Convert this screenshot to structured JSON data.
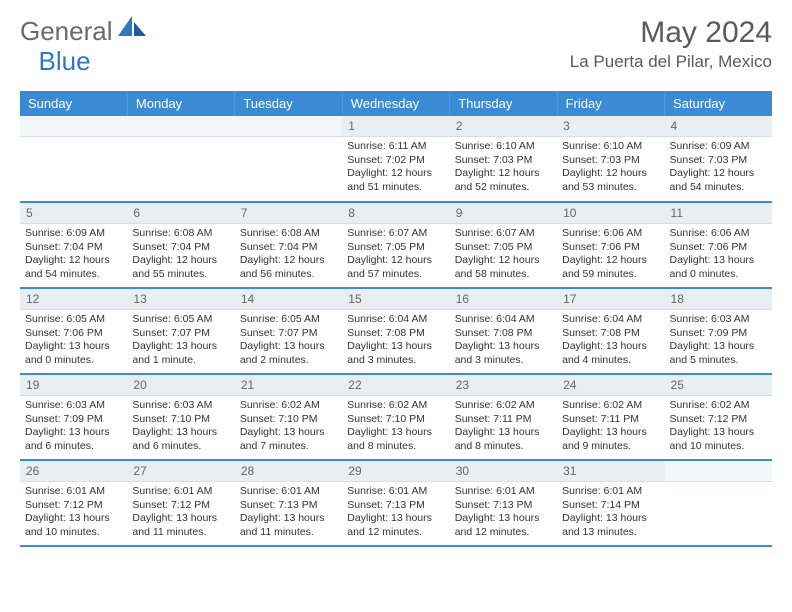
{
  "logo": {
    "general": "General",
    "blue": "Blue"
  },
  "title": "May 2024",
  "location": "La Puerta del Pilar, Mexico",
  "weekdays": [
    "Sunday",
    "Monday",
    "Tuesday",
    "Wednesday",
    "Thursday",
    "Friday",
    "Saturday"
  ],
  "colors": {
    "header_bg": "#3b8bd4",
    "header_text": "#ffffff",
    "daynum_bg": "#e9eef3",
    "row_border": "#3b8bd4",
    "logo_gray": "#6a6a6a",
    "logo_blue": "#2f78c2"
  },
  "font": {
    "title_size": 30,
    "location_size": 17,
    "weekday_size": 13,
    "daynum_size": 12,
    "body_size": 10.5
  },
  "grid": {
    "rows": 5,
    "cols": 7,
    "first_day_col": 3
  },
  "days": [
    {
      "n": "1",
      "sunrise": "Sunrise: 6:11 AM",
      "sunset": "Sunset: 7:02 PM",
      "daylight": "Daylight: 12 hours and 51 minutes."
    },
    {
      "n": "2",
      "sunrise": "Sunrise: 6:10 AM",
      "sunset": "Sunset: 7:03 PM",
      "daylight": "Daylight: 12 hours and 52 minutes."
    },
    {
      "n": "3",
      "sunrise": "Sunrise: 6:10 AM",
      "sunset": "Sunset: 7:03 PM",
      "daylight": "Daylight: 12 hours and 53 minutes."
    },
    {
      "n": "4",
      "sunrise": "Sunrise: 6:09 AM",
      "sunset": "Sunset: 7:03 PM",
      "daylight": "Daylight: 12 hours and 54 minutes."
    },
    {
      "n": "5",
      "sunrise": "Sunrise: 6:09 AM",
      "sunset": "Sunset: 7:04 PM",
      "daylight": "Daylight: 12 hours and 54 minutes."
    },
    {
      "n": "6",
      "sunrise": "Sunrise: 6:08 AM",
      "sunset": "Sunset: 7:04 PM",
      "daylight": "Daylight: 12 hours and 55 minutes."
    },
    {
      "n": "7",
      "sunrise": "Sunrise: 6:08 AM",
      "sunset": "Sunset: 7:04 PM",
      "daylight": "Daylight: 12 hours and 56 minutes."
    },
    {
      "n": "8",
      "sunrise": "Sunrise: 6:07 AM",
      "sunset": "Sunset: 7:05 PM",
      "daylight": "Daylight: 12 hours and 57 minutes."
    },
    {
      "n": "9",
      "sunrise": "Sunrise: 6:07 AM",
      "sunset": "Sunset: 7:05 PM",
      "daylight": "Daylight: 12 hours and 58 minutes."
    },
    {
      "n": "10",
      "sunrise": "Sunrise: 6:06 AM",
      "sunset": "Sunset: 7:06 PM",
      "daylight": "Daylight: 12 hours and 59 minutes."
    },
    {
      "n": "11",
      "sunrise": "Sunrise: 6:06 AM",
      "sunset": "Sunset: 7:06 PM",
      "daylight": "Daylight: 13 hours and 0 minutes."
    },
    {
      "n": "12",
      "sunrise": "Sunrise: 6:05 AM",
      "sunset": "Sunset: 7:06 PM",
      "daylight": "Daylight: 13 hours and 0 minutes."
    },
    {
      "n": "13",
      "sunrise": "Sunrise: 6:05 AM",
      "sunset": "Sunset: 7:07 PM",
      "daylight": "Daylight: 13 hours and 1 minute."
    },
    {
      "n": "14",
      "sunrise": "Sunrise: 6:05 AM",
      "sunset": "Sunset: 7:07 PM",
      "daylight": "Daylight: 13 hours and 2 minutes."
    },
    {
      "n": "15",
      "sunrise": "Sunrise: 6:04 AM",
      "sunset": "Sunset: 7:08 PM",
      "daylight": "Daylight: 13 hours and 3 minutes."
    },
    {
      "n": "16",
      "sunrise": "Sunrise: 6:04 AM",
      "sunset": "Sunset: 7:08 PM",
      "daylight": "Daylight: 13 hours and 3 minutes."
    },
    {
      "n": "17",
      "sunrise": "Sunrise: 6:04 AM",
      "sunset": "Sunset: 7:08 PM",
      "daylight": "Daylight: 13 hours and 4 minutes."
    },
    {
      "n": "18",
      "sunrise": "Sunrise: 6:03 AM",
      "sunset": "Sunset: 7:09 PM",
      "daylight": "Daylight: 13 hours and 5 minutes."
    },
    {
      "n": "19",
      "sunrise": "Sunrise: 6:03 AM",
      "sunset": "Sunset: 7:09 PM",
      "daylight": "Daylight: 13 hours and 6 minutes."
    },
    {
      "n": "20",
      "sunrise": "Sunrise: 6:03 AM",
      "sunset": "Sunset: 7:10 PM",
      "daylight": "Daylight: 13 hours and 6 minutes."
    },
    {
      "n": "21",
      "sunrise": "Sunrise: 6:02 AM",
      "sunset": "Sunset: 7:10 PM",
      "daylight": "Daylight: 13 hours and 7 minutes."
    },
    {
      "n": "22",
      "sunrise": "Sunrise: 6:02 AM",
      "sunset": "Sunset: 7:10 PM",
      "daylight": "Daylight: 13 hours and 8 minutes."
    },
    {
      "n": "23",
      "sunrise": "Sunrise: 6:02 AM",
      "sunset": "Sunset: 7:11 PM",
      "daylight": "Daylight: 13 hours and 8 minutes."
    },
    {
      "n": "24",
      "sunrise": "Sunrise: 6:02 AM",
      "sunset": "Sunset: 7:11 PM",
      "daylight": "Daylight: 13 hours and 9 minutes."
    },
    {
      "n": "25",
      "sunrise": "Sunrise: 6:02 AM",
      "sunset": "Sunset: 7:12 PM",
      "daylight": "Daylight: 13 hours and 10 minutes."
    },
    {
      "n": "26",
      "sunrise": "Sunrise: 6:01 AM",
      "sunset": "Sunset: 7:12 PM",
      "daylight": "Daylight: 13 hours and 10 minutes."
    },
    {
      "n": "27",
      "sunrise": "Sunrise: 6:01 AM",
      "sunset": "Sunset: 7:12 PM",
      "daylight": "Daylight: 13 hours and 11 minutes."
    },
    {
      "n": "28",
      "sunrise": "Sunrise: 6:01 AM",
      "sunset": "Sunset: 7:13 PM",
      "daylight": "Daylight: 13 hours and 11 minutes."
    },
    {
      "n": "29",
      "sunrise": "Sunrise: 6:01 AM",
      "sunset": "Sunset: 7:13 PM",
      "daylight": "Daylight: 13 hours and 12 minutes."
    },
    {
      "n": "30",
      "sunrise": "Sunrise: 6:01 AM",
      "sunset": "Sunset: 7:13 PM",
      "daylight": "Daylight: 13 hours and 12 minutes."
    },
    {
      "n": "31",
      "sunrise": "Sunrise: 6:01 AM",
      "sunset": "Sunset: 7:14 PM",
      "daylight": "Daylight: 13 hours and 13 minutes."
    }
  ]
}
